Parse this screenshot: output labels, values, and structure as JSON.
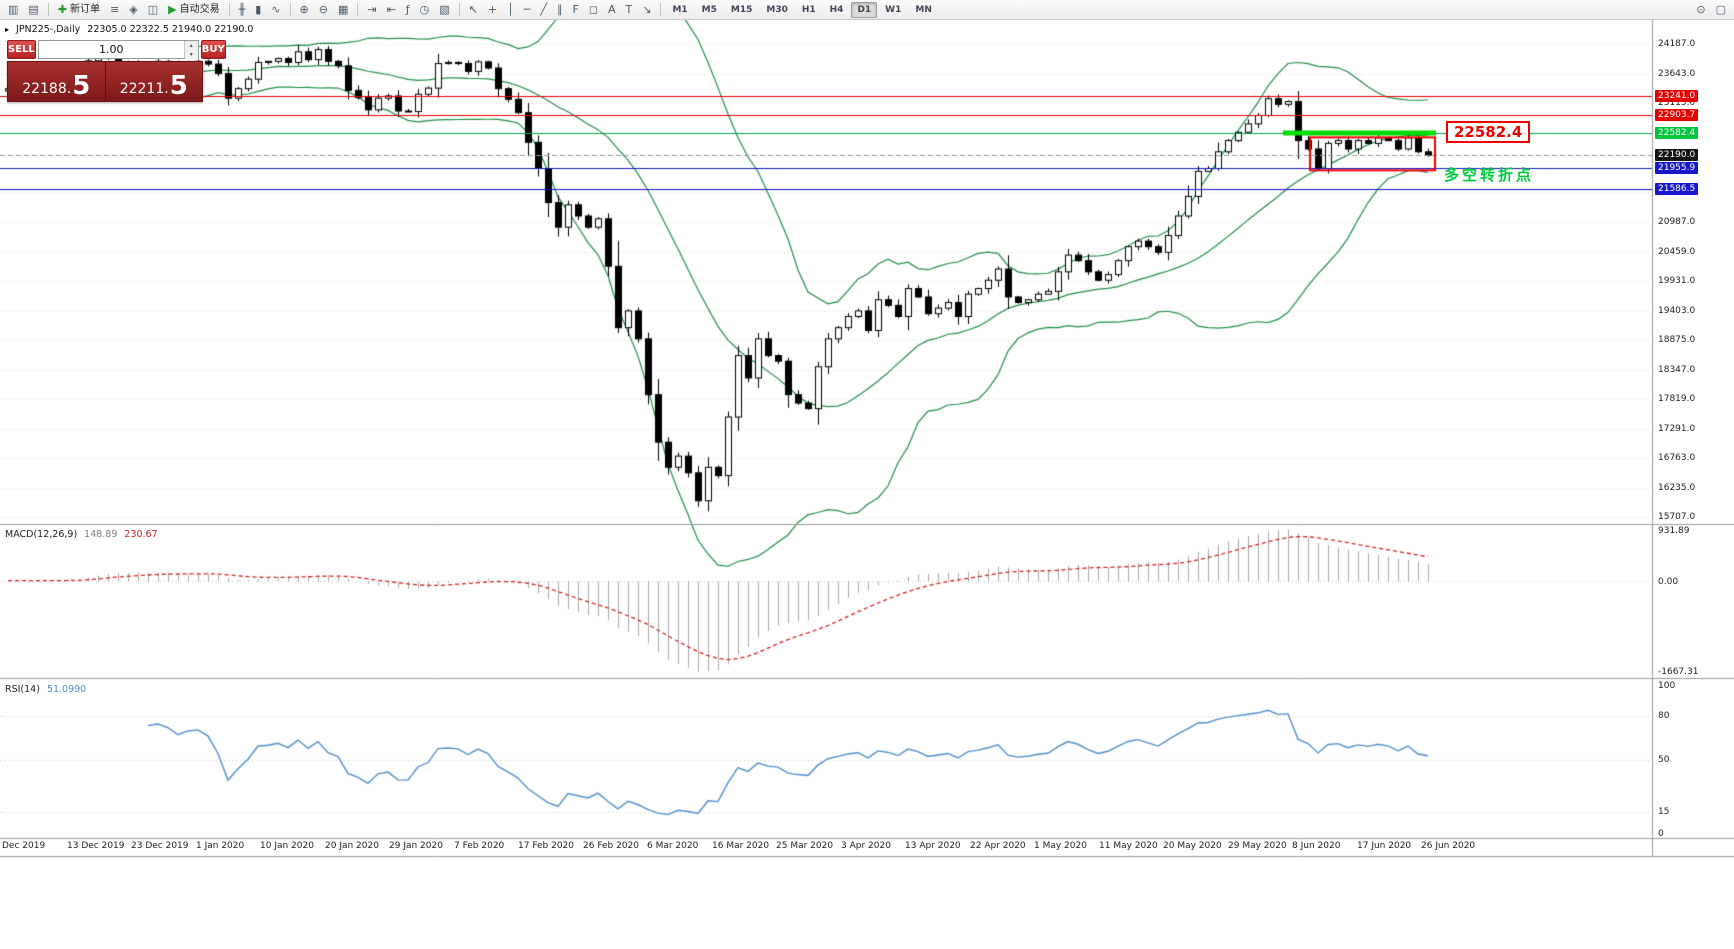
{
  "toolbar": {
    "items": [
      {
        "type": "btn",
        "name": "new-chart-button",
        "glyph": "▥"
      },
      {
        "type": "btn",
        "name": "chart-profiles-button",
        "glyph": "▤"
      },
      {
        "type": "sep"
      },
      {
        "type": "btn",
        "name": "new-order-button",
        "glyph": "✚",
        "glyph_color": "#1d9c2f",
        "label": "新订单"
      },
      {
        "type": "btn",
        "name": "market-watch-button",
        "glyph": "≡"
      },
      {
        "type": "btn",
        "name": "navigator-button",
        "glyph": "◈"
      },
      {
        "type": "btn",
        "name": "terminal-button",
        "glyph": "◫"
      },
      {
        "type": "btn",
        "name": "autotrading-button",
        "glyph": "▶",
        "glyph_color": "#1d9c2f",
        "label": "自动交易"
      },
      {
        "type": "sep"
      },
      {
        "type": "btn",
        "name": "bar-chart-button",
        "glyph": "╫"
      },
      {
        "type": "btn",
        "name": "candlestick-chart-button",
        "glyph": "▮"
      },
      {
        "type": "btn",
        "name": "line-chart-button",
        "glyph": "∿"
      },
      {
        "type": "sep"
      },
      {
        "type": "btn",
        "name": "zoom-in-button",
        "glyph": "⊕"
      },
      {
        "type": "btn",
        "name": "zoom-out-button",
        "glyph": "⊖"
      },
      {
        "type": "btn",
        "name": "tile-windows-button",
        "glyph": "▦"
      },
      {
        "type": "sep"
      },
      {
        "type": "btn",
        "name": "auto-scroll-button",
        "glyph": "⇥"
      },
      {
        "type": "btn",
        "name": "chart-shift-button",
        "glyph": "⇤"
      },
      {
        "type": "btn",
        "name": "indicators-button",
        "glyph": "ƒ"
      },
      {
        "type": "btn",
        "name": "periods-button",
        "glyph": "◷"
      },
      {
        "type": "btn",
        "name": "templates-button",
        "glyph": "▧"
      },
      {
        "type": "sep"
      },
      {
        "type": "btn",
        "name": "cursor-tool-button",
        "glyph": "↖"
      },
      {
        "type": "btn",
        "name": "crosshair-tool-button",
        "glyph": "+"
      },
      {
        "type": "btn",
        "name": "vertical-line-tool-button",
        "glyph": "│"
      },
      {
        "type": "btn",
        "name": "horizontal-line-tool-button",
        "glyph": "─"
      },
      {
        "type": "btn",
        "name": "trendline-tool-button",
        "glyph": "╱"
      },
      {
        "type": "btn",
        "name": "channel-tool-button",
        "glyph": "∥"
      },
      {
        "type": "btn",
        "name": "fibonacci-tool-button",
        "glyph": "F"
      },
      {
        "type": "btn",
        "name": "shapes-tool-button",
        "glyph": "◻"
      },
      {
        "type": "btn",
        "name": "text-tool-button",
        "glyph": "A"
      },
      {
        "type": "btn",
        "name": "label-tool-button",
        "glyph": "T"
      },
      {
        "type": "btn",
        "name": "arrow-tools-button",
        "glyph": "↘"
      },
      {
        "type": "sep"
      }
    ],
    "timeframes": [
      "M1",
      "M5",
      "M15",
      "M30",
      "H1",
      "H4",
      "D1",
      "W1",
      "MN"
    ],
    "active_timeframe": "D1",
    "right_items": [
      {
        "type": "btn",
        "name": "search-button",
        "glyph": "⊙"
      },
      {
        "type": "btn",
        "name": "window-button",
        "glyph": "▢"
      }
    ]
  },
  "symbol_bar": {
    "symbol": "JPN225-,Daily",
    "ohlc_text": "22305.0 22322.5 21940.0 22190.0"
  },
  "trade_panel": {
    "sell_label": "SELL",
    "buy_label": "BUY",
    "volume": "1.00",
    "sell_price": "22188.",
    "sell_price_big": "5",
    "buy_price": "22211.",
    "buy_price_big": "5"
  },
  "annotations": {
    "price_callout": "22582.4",
    "note": "多空转折点"
  },
  "macd_panel": {
    "title": "MACD(12,26,9)",
    "value_main": "148.89",
    "value_signal": "230.67",
    "axis_labels": [
      {
        "text": "931.89",
        "value": 931.89
      },
      {
        "text": "0.00",
        "value": 0
      },
      {
        "text": "-1667.31",
        "value": -1667.31
      }
    ]
  },
  "rsi_panel": {
    "title": "RSI(14)",
    "value": "51.0990",
    "levels": [
      80,
      50,
      15
    ],
    "axis_labels": [
      {
        "text": "100",
        "value": 100
      },
      {
        "text": "80",
        "value": 80
      },
      {
        "text": "50",
        "value": 50
      },
      {
        "text": "15",
        "value": 15
      },
      {
        "text": "0",
        "value": 0
      }
    ]
  },
  "price_axis": {
    "labels": [
      {
        "text": "24187.0",
        "price": 24187
      },
      {
        "text": "23643.0",
        "price": 23643
      },
      {
        "text": "23115.0",
        "price": 23115
      },
      {
        "text": "20987.0",
        "price": 20987
      },
      {
        "text": "20459.0",
        "price": 20459
      },
      {
        "text": "19931.0",
        "price": 19931
      },
      {
        "text": "19403.0",
        "price": 19403
      },
      {
        "text": "18875.0",
        "price": 18875
      },
      {
        "text": "18347.0",
        "price": 18347
      },
      {
        "text": "17819.0",
        "price": 17819
      },
      {
        "text": "17291.0",
        "price": 17291
      },
      {
        "text": "16763.0",
        "price": 16763
      },
      {
        "text": "16235.0",
        "price": 16235
      },
      {
        "text": "15707.0",
        "price": 15707
      }
    ],
    "badges": [
      {
        "text": "23241.0",
        "price": 23241.0,
        "bg": "#e60000"
      },
      {
        "text": "22903.7",
        "price": 22903.7,
        "bg": "#e60000"
      },
      {
        "text": "22582.4",
        "price": 22582.4,
        "bg": "#00c43c"
      },
      {
        "text": "22190.0",
        "price": 22190.0,
        "bg": "#141414"
      },
      {
        "text": "21955.9",
        "price": 21955.9,
        "bg": "#1616cc"
      },
      {
        "text": "21586.5",
        "price": 21586.5,
        "bg": "#1616cc"
      }
    ]
  },
  "date_axis": [
    "Dec 2019",
    "13 Dec 2019",
    "23 Dec 2019",
    "1 Jan 2020",
    "10 Jan 2020",
    "20 Jan 2020",
    "29 Jan 2020",
    "7 Feb 2020",
    "17 Feb 2020",
    "26 Feb 2020",
    "6 Mar 2020",
    "16 Mar 2020",
    "25 Mar 2020",
    "3 Apr 2020",
    "13 Apr 2020",
    "22 Apr 2020",
    "1 May 2020",
    "11 May 2020",
    "20 May 2020",
    "29 May 2020",
    "8 Jun 2020",
    "17 Jun 2020",
    "26 Jun 2020"
  ],
  "chart_data": {
    "type": "candlestick",
    "symbol": "JPN225-",
    "timeframe": "Daily",
    "current_bar": {
      "open": 22305.0,
      "high": 22322.5,
      "low": 21940.0,
      "close": 22190.0
    },
    "price_range": [
      15620,
      24610
    ],
    "first_open": 23340,
    "closes": [
      23380,
      23310,
      23350,
      23430,
      23410,
      23390,
      23420,
      23520,
      23880,
      23950,
      23930,
      23840,
      23820,
      23850,
      23830,
      23870,
      23840,
      23780,
      23850,
      23870,
      23820,
      23650,
      23210,
      23380,
      23550,
      23850,
      23870,
      23920,
      23850,
      24040,
      23900,
      24080,
      23870,
      23790,
      23350,
      23220,
      23000,
      23210,
      23250,
      22980,
      22970,
      23280,
      23390,
      23830,
      23850,
      23830,
      23690,
      23860,
      23750,
      23380,
      23190,
      22950,
      22420,
      21950,
      21340,
      20900,
      21300,
      21100,
      20900,
      21050,
      20200,
      19100,
      19400,
      18900,
      17900,
      17050,
      16600,
      16800,
      16500,
      16000,
      16600,
      16450,
      17500,
      18600,
      18200,
      18900,
      18600,
      18500,
      17900,
      17750,
      17650,
      18400,
      18900,
      19100,
      19300,
      19400,
      19050,
      19600,
      19500,
      19300,
      19800,
      19650,
      19350,
      19450,
      19550,
      19300,
      19700,
      19800,
      19950,
      20150,
      19650,
      19550,
      19600,
      19700,
      19750,
      20100,
      20400,
      20300,
      20100,
      19950,
      20050,
      20300,
      20550,
      20650,
      20550,
      20450,
      20750,
      21100,
      21450,
      21900,
      21950,
      22250,
      22450,
      22600,
      22750,
      22900,
      23200,
      23100,
      23150,
      22450,
      22300,
      21950,
      22400,
      22450,
      22300,
      22450,
      22400,
      22500,
      22450,
      22300,
      22500,
      22250,
      22190
    ],
    "grid_prices": [
      24187,
      23643,
      23115,
      22587,
      22059,
      21531,
      20987,
      20459,
      19931,
      19403,
      18875,
      18347,
      17819,
      17291,
      16763,
      16235,
      15707
    ],
    "hlines": [
      {
        "price": 23241.0,
        "color": "#e80000",
        "width": 1
      },
      {
        "price": 22903.7,
        "color": "#e80000",
        "width": 1
      },
      {
        "price": 22582.4,
        "color": "#00a448",
        "width": 1
      },
      {
        "price": 21955.9,
        "color": "#1414cc",
        "width": 1
      },
      {
        "price": 21586.5,
        "color": "#1414cc",
        "width": 1
      },
      {
        "price": 22190.0,
        "color": "#999999",
        "width": 1,
        "dash": true
      }
    ],
    "thick_line": {
      "price": 22582.4,
      "from_index": 127.5,
      "to_index": 142.8,
      "color": "#00dc00",
      "width": 5
    },
    "red_box": {
      "from_index": 130.2,
      "to_index": 142.7,
      "price_top": 22508,
      "price_bottom": 21918,
      "color": "#f00000"
    },
    "bollinger": {
      "period": 20,
      "deviation": 2
    },
    "macd": {
      "fast": 12,
      "slow": 26,
      "signal": 9,
      "scale_max": 931.89,
      "scale_min": -1667.31
    },
    "rsi": {
      "period": 14
    },
    "colors": {
      "background": "#ffffff",
      "grid": "#dadada",
      "candle_up": "#ffffff",
      "candle_down": "#000000",
      "candle_outline": "#000000",
      "bollinger": "#1f9048",
      "macd_histogram": "#a8a8a8",
      "macd_signal": "#e02020",
      "rsi_line": "#4f8fd0",
      "separator": "#9b9b9b"
    }
  }
}
